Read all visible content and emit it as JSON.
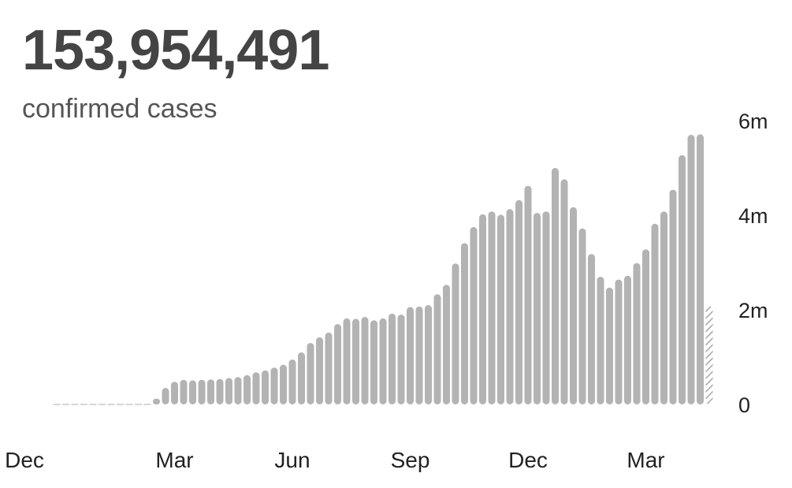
{
  "header": {
    "total": "153,954,491",
    "label": "confirmed cases"
  },
  "colors": {
    "bar": "#b3b3b3",
    "text": "#444444"
  },
  "chart_data": {
    "type": "bar",
    "ylim": [
      0,
      6000000
    ],
    "y_ticks": [
      {
        "value": 0,
        "label": "0"
      },
      {
        "value": 2000000,
        "label": "2m"
      },
      {
        "value": 4000000,
        "label": "4m"
      },
      {
        "value": 6000000,
        "label": "6m"
      }
    ],
    "x_ticks": [
      {
        "index": 0,
        "label": "Dec"
      },
      {
        "index": 13,
        "label": "Mar"
      },
      {
        "index": 26,
        "label": "Jun"
      },
      {
        "index": 39,
        "label": "Sep"
      },
      {
        "index": 52,
        "label": "Dec"
      },
      {
        "index": 65,
        "label": "Mar"
      }
    ],
    "grid": false,
    "last_bar_partial": true,
    "values": [
      0,
      0,
      500,
      2000,
      3000,
      5000,
      4000,
      3000,
      5000,
      6000,
      20000,
      120000,
      350000,
      480000,
      520000,
      510000,
      520000,
      530000,
      540000,
      560000,
      580000,
      620000,
      680000,
      720000,
      780000,
      840000,
      950000,
      1100000,
      1300000,
      1420000,
      1520000,
      1700000,
      1820000,
      1810000,
      1850000,
      1780000,
      1820000,
      1920000,
      1900000,
      2060000,
      2070000,
      2100000,
      2330000,
      2530000,
      2980000,
      3410000,
      3750000,
      4020000,
      4080000,
      4010000,
      4130000,
      4320000,
      4620000,
      4050000,
      4080000,
      5000000,
      4760000,
      4170000,
      3720000,
      3180000,
      2700000,
      2470000,
      2640000,
      2720000,
      2990000,
      3280000,
      3820000,
      4080000,
      4540000,
      5270000,
      5700000,
      5710000,
      2080000
    ]
  }
}
